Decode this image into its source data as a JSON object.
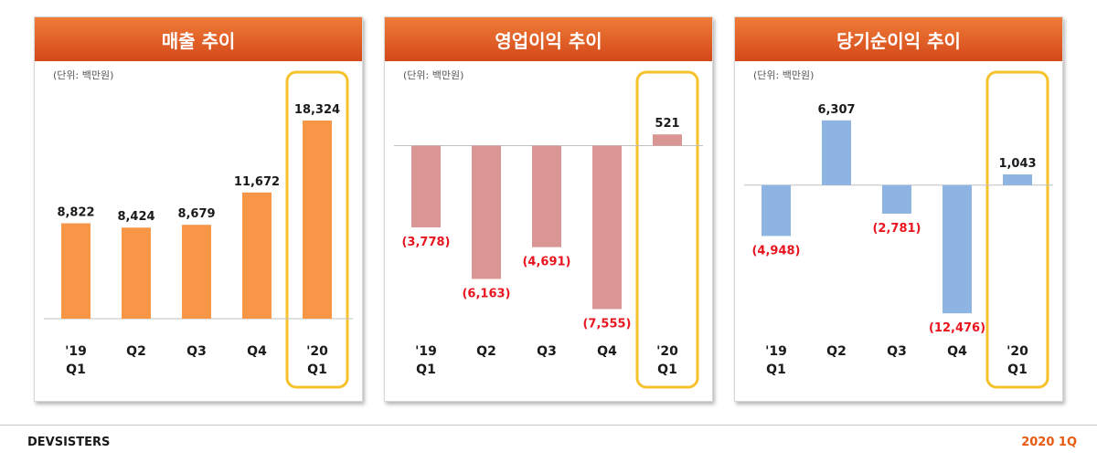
{
  "chart_data": [
    {
      "type": "bar",
      "title": "매출 추이",
      "unit_label": "(단위: 백만원)",
      "categories": [
        "'19\nQ1",
        "Q2",
        "Q3",
        "Q4",
        "'20\nQ1"
      ],
      "values": [
        8822,
        8424,
        8679,
        11672,
        18324
      ],
      "value_labels": [
        "8,822",
        "8,424",
        "8,679",
        "11,672",
        "18,324"
      ],
      "highlight_index": 4,
      "ylim": [
        0,
        19000
      ],
      "grid": false,
      "legend": "none"
    },
    {
      "type": "bar",
      "title": "영업이익 추이",
      "unit_label": "(단위: 백만원)",
      "categories": [
        "'19\nQ1",
        "Q2",
        "Q3",
        "Q4",
        "'20\nQ1"
      ],
      "values": [
        -3778,
        -6163,
        -4691,
        -7555,
        521
      ],
      "value_labels": [
        "(3,778)",
        "(6,163)",
        "(4,691)",
        "(7,555)",
        "521"
      ],
      "highlight_index": 4,
      "ylim": [
        -8000,
        1500
      ],
      "grid": false,
      "legend": "none"
    },
    {
      "type": "bar",
      "title": "당기순이익 추이",
      "unit_label": "(단위: 백만원)",
      "categories": [
        "'19\nQ1",
        "Q2",
        "Q3",
        "Q4",
        "'20\nQ1"
      ],
      "values": [
        -4948,
        6307,
        -2781,
        -12476,
        1043
      ],
      "value_labels": [
        "(4,948)",
        "6,307",
        "(2,781)",
        "(12,476)",
        "1,043"
      ],
      "highlight_index": 4,
      "ylim": [
        -13000,
        7000
      ],
      "grid": false,
      "legend": "none"
    }
  ],
  "colors": {
    "sales_bar": "#f79646",
    "operating_bar": "#d99694",
    "net_bar": "#8eb4e3",
    "negative_label": "#e8141e",
    "positive_label": "#1a1a1a",
    "highlight_box": "#f5c22b",
    "header": "#e4642a"
  },
  "footer": {
    "company": "DEVSISTERS",
    "period": "2020 1Q"
  }
}
